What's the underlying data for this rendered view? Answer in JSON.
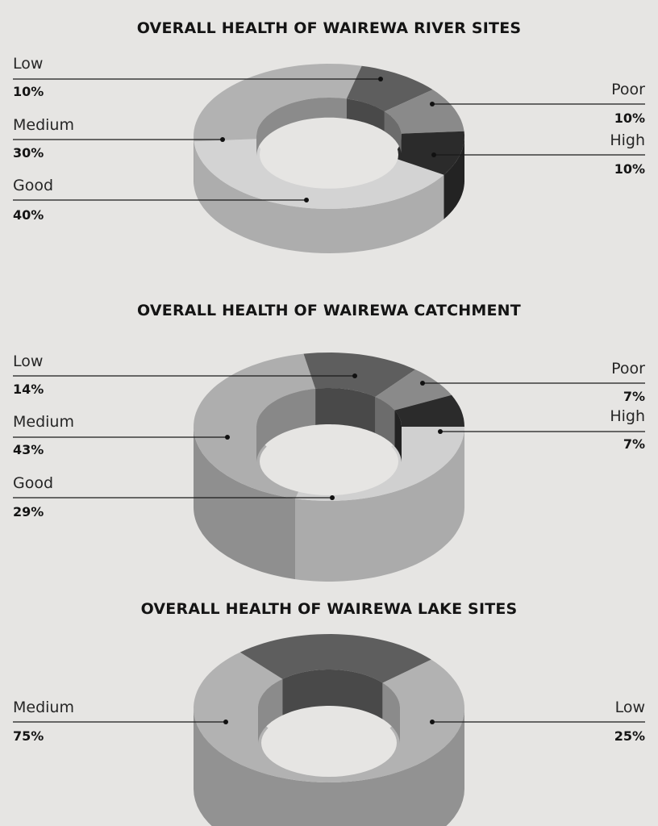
{
  "chart_data": [
    {
      "type": "pie",
      "title": "OVERALL HEALTH OF WAIREWA RIVER SITES",
      "slices": [
        {
          "label": "Good",
          "value": 40,
          "value_label": "40%",
          "color": "#d3d3d3"
        },
        {
          "label": "Medium",
          "value": 30,
          "value_label": "30%",
          "color": "#b2b2b2"
        },
        {
          "label": "Low",
          "value": 10,
          "value_label": "10%",
          "color": "#5e5e5e"
        },
        {
          "label": "Poor",
          "value": 10,
          "value_label": "10%",
          "color": "#8a8a8a"
        },
        {
          "label": "High",
          "value": 10,
          "value_label": "10%",
          "color": "#2b2b2b"
        }
      ]
    },
    {
      "type": "pie",
      "title": "OVERALL HEALTH OF WAIREWA CATCHMENT",
      "slices": [
        {
          "label": "Good",
          "value": 29,
          "value_label": "29%",
          "color": "#d0d0d0"
        },
        {
          "label": "Medium",
          "value": 43,
          "value_label": "43%",
          "color": "#aeaeae"
        },
        {
          "label": "Low",
          "value": 14,
          "value_label": "14%",
          "color": "#5e5e5e"
        },
        {
          "label": "Poor",
          "value": 7,
          "value_label": "7%",
          "color": "#8a8a8a"
        },
        {
          "label": "High",
          "value": 7,
          "value_label": "7%",
          "color": "#2b2b2b"
        }
      ]
    },
    {
      "type": "pie",
      "title": "OVERALL HEALTH OF WAIREWA  LAKE SITES",
      "slices": [
        {
          "label": "Medium",
          "value": 75,
          "value_label": "75%",
          "color": "#b2b2b2"
        },
        {
          "label": "Low",
          "value": 25,
          "value_label": "25%",
          "color": "#5e5e5e"
        }
      ]
    }
  ]
}
